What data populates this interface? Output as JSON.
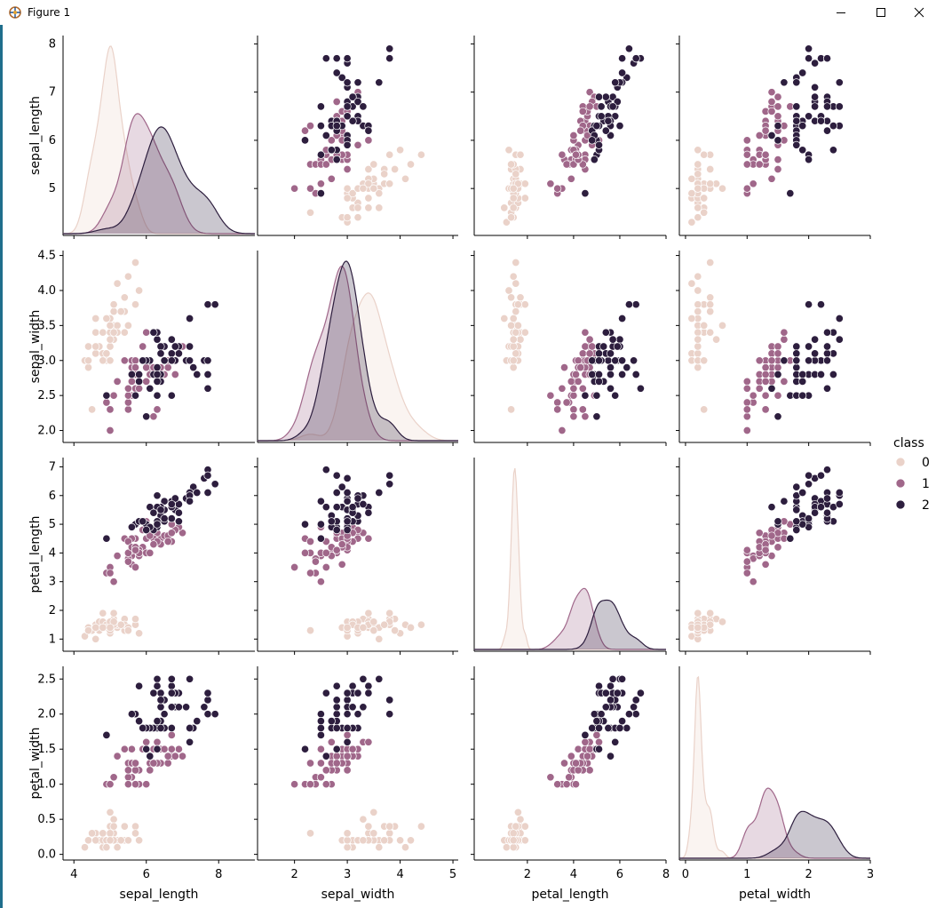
{
  "window": {
    "title": "Figure 1",
    "controls": [
      "minimize-icon",
      "maximize-icon",
      "close-icon"
    ]
  },
  "colors": {
    "0": "#ead2c9",
    "1": "#a0678a",
    "2": "#2d1e3e",
    "accent": "#1f6e8c"
  },
  "legend": {
    "title": "class",
    "labels": [
      "0",
      "1",
      "2"
    ],
    "placement": "right-center"
  },
  "chart_data": {
    "type": "pairplot",
    "variables": [
      "sepal_length",
      "sepal_width",
      "petal_length",
      "petal_width"
    ],
    "hue": "class",
    "diagonal": "kde",
    "off_diagonal": "scatter",
    "axes": {
      "sepal_length": {
        "range": [
          3.7,
          9.0
        ],
        "ticks": [
          4,
          6,
          8
        ],
        "inner_ticks": [
          5,
          6,
          7,
          8
        ],
        "inner_range": [
          4.1,
          8.1
        ],
        "tick_labels": [
          "5",
          "6",
          "7",
          "8"
        ]
      },
      "sepal_width": {
        "range": [
          1.3,
          5.1
        ],
        "ticks": [
          2,
          3,
          4,
          5
        ],
        "inner_ticks": [
          2.0,
          2.5,
          3.0,
          3.5,
          4.0,
          4.5
        ],
        "inner_range": [
          1.88,
          4.52
        ],
        "tick_labels": [
          "2.0",
          "2.5",
          "3.0",
          "3.5",
          "4.0",
          "4.5"
        ]
      },
      "petal_length": {
        "range": [
          -0.3,
          8.0
        ],
        "ticks": [
          2,
          4,
          6,
          8
        ],
        "inner_ticks": [
          1,
          2,
          3,
          4,
          5,
          6,
          7
        ],
        "inner_range": [
          0.7,
          7.2
        ],
        "tick_labels": [
          "1",
          "2",
          "3",
          "4",
          "5",
          "6",
          "7"
        ]
      },
      "petal_width": {
        "range": [
          -0.1,
          3.0
        ],
        "ticks": [
          0,
          1,
          2,
          3
        ],
        "inner_ticks": [
          0.0,
          0.5,
          1.0,
          1.5,
          2.0,
          2.5
        ],
        "inner_range": [
          -0.03,
          2.63
        ],
        "tick_labels": [
          "0.0",
          "0.5",
          "1.0",
          "1.5",
          "2.0",
          "2.5"
        ]
      }
    },
    "series": [
      {
        "name": "0",
        "points": [
          [
            5.1,
            3.5,
            1.4,
            0.2
          ],
          [
            4.9,
            3.0,
            1.4,
            0.2
          ],
          [
            4.7,
            3.2,
            1.3,
            0.2
          ],
          [
            4.6,
            3.1,
            1.5,
            0.2
          ],
          [
            5.0,
            3.6,
            1.4,
            0.2
          ],
          [
            5.4,
            3.9,
            1.7,
            0.4
          ],
          [
            4.6,
            3.4,
            1.4,
            0.3
          ],
          [
            5.0,
            3.4,
            1.5,
            0.2
          ],
          [
            4.4,
            2.9,
            1.4,
            0.2
          ],
          [
            4.9,
            3.1,
            1.5,
            0.1
          ],
          [
            5.4,
            3.7,
            1.5,
            0.2
          ],
          [
            4.8,
            3.4,
            1.6,
            0.2
          ],
          [
            4.8,
            3.0,
            1.4,
            0.1
          ],
          [
            4.3,
            3.0,
            1.1,
            0.1
          ],
          [
            5.8,
            4.0,
            1.2,
            0.2
          ],
          [
            5.7,
            4.4,
            1.5,
            0.4
          ],
          [
            5.4,
            3.9,
            1.3,
            0.4
          ],
          [
            5.1,
            3.5,
            1.4,
            0.3
          ],
          [
            5.7,
            3.8,
            1.7,
            0.3
          ],
          [
            5.1,
            3.8,
            1.5,
            0.3
          ],
          [
            5.4,
            3.4,
            1.7,
            0.2
          ],
          [
            5.1,
            3.7,
            1.5,
            0.4
          ],
          [
            4.6,
            3.6,
            1.0,
            0.2
          ],
          [
            5.1,
            3.3,
            1.7,
            0.5
          ],
          [
            4.8,
            3.4,
            1.9,
            0.2
          ],
          [
            5.0,
            3.0,
            1.6,
            0.2
          ],
          [
            5.0,
            3.4,
            1.6,
            0.4
          ],
          [
            5.2,
            3.5,
            1.5,
            0.2
          ],
          [
            5.2,
            3.4,
            1.4,
            0.2
          ],
          [
            4.7,
            3.2,
            1.6,
            0.2
          ],
          [
            4.8,
            3.1,
            1.6,
            0.2
          ],
          [
            5.4,
            3.4,
            1.5,
            0.4
          ],
          [
            5.2,
            4.1,
            1.5,
            0.1
          ],
          [
            5.5,
            4.2,
            1.4,
            0.2
          ],
          [
            4.9,
            3.1,
            1.5,
            0.2
          ],
          [
            5.0,
            3.2,
            1.2,
            0.2
          ],
          [
            5.5,
            3.5,
            1.3,
            0.2
          ],
          [
            4.9,
            3.6,
            1.4,
            0.1
          ],
          [
            4.4,
            3.0,
            1.3,
            0.2
          ],
          [
            5.1,
            3.4,
            1.5,
            0.2
          ],
          [
            5.0,
            3.5,
            1.3,
            0.3
          ],
          [
            4.5,
            2.3,
            1.3,
            0.3
          ],
          [
            4.4,
            3.2,
            1.3,
            0.2
          ],
          [
            5.0,
            3.5,
            1.6,
            0.6
          ],
          [
            5.1,
            3.8,
            1.9,
            0.4
          ],
          [
            4.8,
            3.0,
            1.4,
            0.3
          ],
          [
            5.1,
            3.8,
            1.6,
            0.2
          ],
          [
            4.6,
            3.2,
            1.4,
            0.2
          ],
          [
            5.3,
            3.7,
            1.5,
            0.2
          ],
          [
            5.0,
            3.3,
            1.4,
            0.2
          ]
        ]
      },
      {
        "name": "1",
        "points": [
          [
            7.0,
            3.2,
            4.7,
            1.4
          ],
          [
            6.4,
            3.2,
            4.5,
            1.5
          ],
          [
            6.9,
            3.1,
            4.9,
            1.5
          ],
          [
            5.5,
            2.3,
            4.0,
            1.3
          ],
          [
            6.5,
            2.8,
            4.6,
            1.5
          ],
          [
            5.7,
            2.8,
            4.5,
            1.3
          ],
          [
            6.3,
            3.3,
            4.7,
            1.6
          ],
          [
            4.9,
            2.4,
            3.3,
            1.0
          ],
          [
            6.6,
            2.9,
            4.6,
            1.3
          ],
          [
            5.2,
            2.7,
            3.9,
            1.4
          ],
          [
            5.0,
            2.0,
            3.5,
            1.0
          ],
          [
            5.9,
            3.0,
            4.2,
            1.5
          ],
          [
            6.0,
            2.2,
            4.0,
            1.0
          ],
          [
            6.1,
            2.9,
            4.7,
            1.4
          ],
          [
            5.6,
            2.9,
            3.6,
            1.3
          ],
          [
            6.7,
            3.1,
            4.4,
            1.4
          ],
          [
            5.6,
            3.0,
            4.5,
            1.5
          ],
          [
            5.8,
            2.7,
            4.1,
            1.0
          ],
          [
            6.2,
            2.2,
            4.5,
            1.5
          ],
          [
            5.6,
            2.5,
            3.9,
            1.1
          ],
          [
            5.9,
            3.2,
            4.8,
            1.8
          ],
          [
            6.1,
            2.8,
            4.0,
            1.3
          ],
          [
            6.3,
            2.5,
            4.9,
            1.5
          ],
          [
            6.1,
            2.8,
            4.7,
            1.2
          ],
          [
            6.4,
            2.9,
            4.3,
            1.3
          ],
          [
            6.6,
            3.0,
            4.4,
            1.4
          ],
          [
            6.8,
            2.8,
            4.8,
            1.4
          ],
          [
            6.7,
            3.0,
            5.0,
            1.7
          ],
          [
            6.0,
            2.9,
            4.5,
            1.5
          ],
          [
            5.7,
            2.6,
            3.5,
            1.0
          ],
          [
            5.5,
            2.4,
            3.8,
            1.1
          ],
          [
            5.5,
            2.4,
            3.7,
            1.0
          ],
          [
            5.8,
            2.7,
            3.9,
            1.2
          ],
          [
            6.0,
            2.7,
            5.1,
            1.6
          ],
          [
            5.4,
            3.0,
            4.5,
            1.5
          ],
          [
            6.0,
            3.4,
            4.5,
            1.6
          ],
          [
            6.7,
            3.1,
            4.7,
            1.5
          ],
          [
            6.3,
            2.3,
            4.4,
            1.3
          ],
          [
            5.6,
            3.0,
            4.1,
            1.3
          ],
          [
            5.5,
            2.5,
            4.0,
            1.3
          ],
          [
            5.5,
            2.6,
            4.4,
            1.2
          ],
          [
            6.1,
            3.0,
            4.6,
            1.4
          ],
          [
            5.8,
            2.6,
            4.0,
            1.2
          ],
          [
            5.0,
            2.3,
            3.3,
            1.0
          ],
          [
            5.6,
            2.7,
            4.2,
            1.3
          ],
          [
            5.7,
            3.0,
            4.2,
            1.2
          ],
          [
            5.7,
            2.9,
            4.2,
            1.3
          ],
          [
            6.2,
            2.9,
            4.3,
            1.3
          ],
          [
            5.1,
            2.5,
            3.0,
            1.1
          ],
          [
            5.7,
            2.8,
            4.1,
            1.3
          ]
        ]
      },
      {
        "name": "2",
        "points": [
          [
            6.3,
            3.3,
            6.0,
            2.5
          ],
          [
            5.8,
            2.7,
            5.1,
            1.9
          ],
          [
            7.1,
            3.0,
            5.9,
            2.1
          ],
          [
            6.3,
            2.9,
            5.6,
            1.8
          ],
          [
            6.5,
            3.0,
            5.8,
            2.2
          ],
          [
            7.6,
            3.0,
            6.6,
            2.1
          ],
          [
            4.9,
            2.5,
            4.5,
            1.7
          ],
          [
            7.3,
            2.9,
            6.3,
            1.8
          ],
          [
            6.7,
            2.5,
            5.8,
            1.8
          ],
          [
            7.2,
            3.6,
            6.1,
            2.5
          ],
          [
            6.5,
            3.2,
            5.1,
            2.0
          ],
          [
            6.4,
            2.7,
            5.3,
            1.9
          ],
          [
            6.8,
            3.0,
            5.5,
            2.1
          ],
          [
            5.7,
            2.5,
            5.0,
            2.0
          ],
          [
            5.8,
            2.8,
            5.1,
            2.4
          ],
          [
            6.4,
            3.2,
            5.3,
            2.3
          ],
          [
            6.5,
            3.0,
            5.5,
            1.8
          ],
          [
            7.7,
            3.8,
            6.7,
            2.2
          ],
          [
            7.7,
            2.6,
            6.9,
            2.3
          ],
          [
            6.0,
            2.2,
            5.0,
            1.5
          ],
          [
            6.9,
            3.2,
            5.7,
            2.3
          ],
          [
            5.6,
            2.8,
            4.9,
            2.0
          ],
          [
            7.7,
            2.8,
            6.7,
            2.0
          ],
          [
            6.3,
            2.7,
            4.9,
            1.8
          ],
          [
            6.7,
            3.3,
            5.7,
            2.1
          ],
          [
            7.2,
            3.2,
            6.0,
            1.8
          ],
          [
            6.2,
            2.8,
            4.8,
            1.8
          ],
          [
            6.1,
            3.0,
            4.9,
            1.8
          ],
          [
            6.4,
            2.8,
            5.6,
            2.1
          ],
          [
            7.2,
            3.0,
            5.8,
            1.6
          ],
          [
            7.4,
            2.8,
            6.1,
            1.9
          ],
          [
            7.9,
            3.8,
            6.4,
            2.0
          ],
          [
            6.4,
            2.8,
            5.6,
            2.2
          ],
          [
            6.3,
            2.8,
            5.1,
            1.5
          ],
          [
            6.1,
            2.6,
            5.6,
            1.4
          ],
          [
            7.7,
            3.0,
            6.1,
            2.3
          ],
          [
            6.3,
            3.4,
            5.6,
            2.4
          ],
          [
            6.4,
            3.1,
            5.5,
            1.8
          ],
          [
            6.0,
            3.0,
            4.8,
            1.8
          ],
          [
            6.9,
            3.1,
            5.4,
            2.1
          ],
          [
            6.7,
            3.1,
            5.6,
            2.4
          ],
          [
            6.9,
            3.1,
            5.1,
            2.3
          ],
          [
            5.8,
            2.7,
            5.1,
            1.9
          ],
          [
            6.8,
            3.2,
            5.9,
            2.3
          ],
          [
            6.7,
            3.3,
            5.7,
            2.5
          ],
          [
            6.7,
            3.0,
            5.2,
            2.3
          ],
          [
            6.3,
            2.5,
            5.0,
            1.9
          ],
          [
            6.5,
            3.0,
            5.2,
            2.0
          ],
          [
            6.2,
            3.4,
            5.4,
            2.3
          ],
          [
            5.9,
            3.0,
            5.1,
            1.8
          ]
        ]
      }
    ]
  }
}
